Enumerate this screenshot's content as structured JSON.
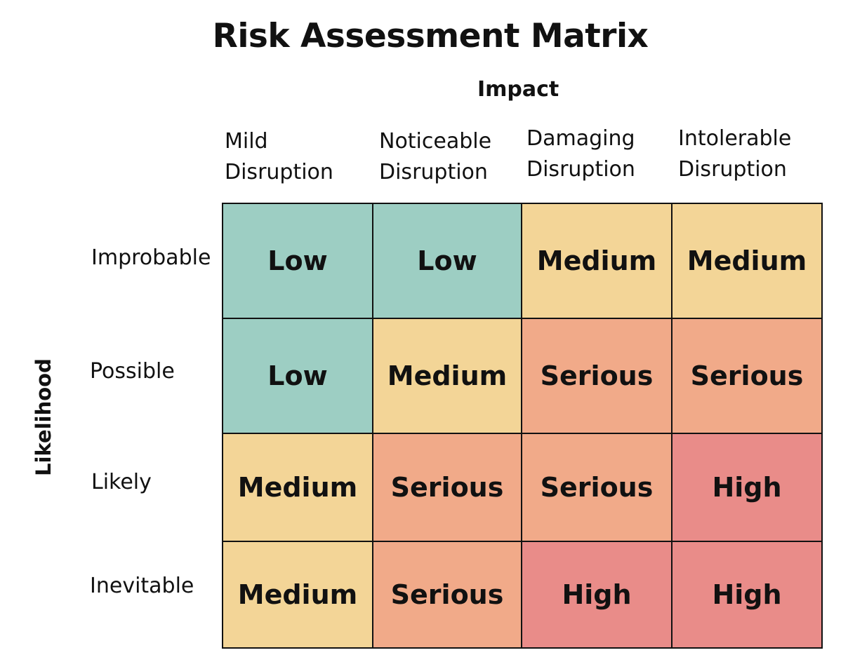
{
  "title": "Risk Assessment Matrix",
  "x_axis_label": "Impact",
  "y_axis_label": "Likelihood",
  "columns": [
    {
      "line1": "Mild",
      "line2": "Disruption"
    },
    {
      "line1": "Noticeable",
      "line2": "Disruption"
    },
    {
      "line1": "Damaging",
      "line2": "Disruption"
    },
    {
      "line1": "Intolerable",
      "line2": "Disruption"
    }
  ],
  "rows": [
    "Improbable",
    "Possible",
    "Likely",
    "Inevitable"
  ],
  "cells": [
    [
      "Low",
      "Low",
      "Medium",
      "Medium"
    ],
    [
      "Low",
      "Medium",
      "Serious",
      "Serious"
    ],
    [
      "Medium",
      "Serious",
      "Serious",
      "High"
    ],
    [
      "Medium",
      "Serious",
      "High",
      "High"
    ]
  ],
  "level_colors": {
    "Low": "#9dcec3",
    "Medium": "#f3d597",
    "Serious": "#f1aa89",
    "High": "#e98c89"
  }
}
